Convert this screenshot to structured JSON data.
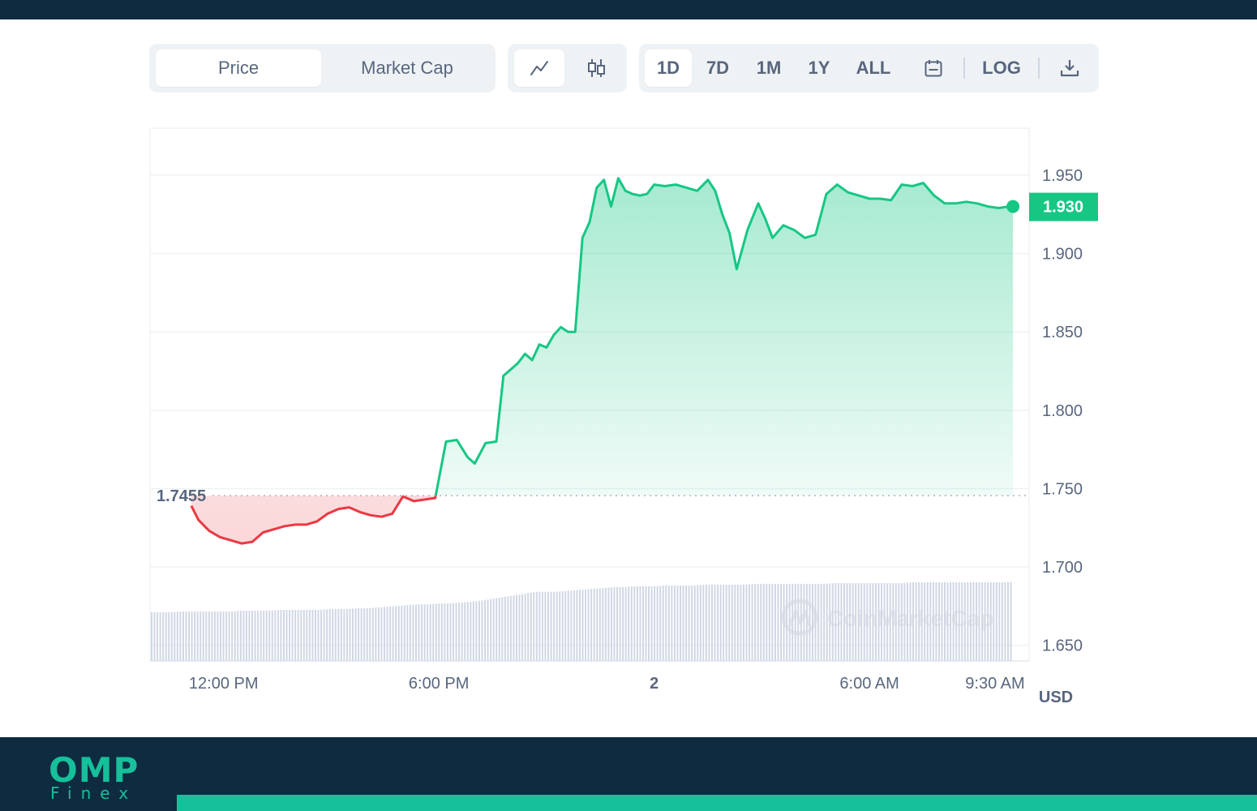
{
  "toolbar": {
    "price_label": "Price",
    "market_cap_label": "Market Cap",
    "ranges": [
      "1D",
      "7D",
      "1M",
      "1Y",
      "ALL"
    ],
    "log_label": "LOG"
  },
  "brand": {
    "logo_text": "OMP",
    "logo_subtext": "Finex"
  },
  "colors": {
    "up": "#16c784",
    "down": "#ea3943",
    "dark_navy": "#0f2b40",
    "brand_teal": "#16c09a"
  },
  "chart_data": {
    "type": "area",
    "baseline": 1.7455,
    "baseline_label": "1.7455",
    "current_price": 1.93,
    "current_price_label": "1.930",
    "currency_label": "USD",
    "watermark": "CoinMarketCap",
    "ylim": [
      1.64,
      1.98
    ],
    "y_ticks": [
      "1.950",
      "1.900",
      "1.850",
      "1.800",
      "1.750",
      "1.700",
      "1.650"
    ],
    "x_ticks": [
      "12:00 PM",
      "6:00 PM",
      "2",
      "6:00 AM",
      "9:30 AM"
    ],
    "x_tick_hours": [
      12,
      18,
      24,
      30,
      33.5
    ],
    "xlim_hours": [
      9.95,
      34.45
    ],
    "x_hours": [
      11.1,
      11.3,
      11.6,
      11.9,
      12.2,
      12.5,
      12.8,
      13.1,
      13.4,
      13.7,
      14.0,
      14.3,
      14.6,
      14.9,
      15.2,
      15.5,
      15.8,
      16.1,
      16.4,
      16.7,
      17.0,
      17.3,
      17.6,
      17.9,
      18.2,
      18.5,
      18.8,
      19.0,
      19.3,
      19.6,
      19.8,
      20.0,
      20.2,
      20.4,
      20.6,
      20.8,
      21.0,
      21.2,
      21.4,
      21.6,
      21.8,
      22.0,
      22.2,
      22.4,
      22.6,
      22.8,
      23.0,
      23.2,
      23.4,
      23.6,
      23.8,
      24.0,
      24.3,
      24.6,
      24.9,
      25.2,
      25.5,
      25.7,
      25.9,
      26.1,
      26.3,
      26.6,
      26.9,
      27.1,
      27.3,
      27.6,
      27.9,
      28.2,
      28.5,
      28.8,
      29.1,
      29.4,
      29.7,
      30.0,
      30.3,
      30.6,
      30.9,
      31.2,
      31.5,
      31.8,
      32.1,
      32.4,
      32.7,
      33.0,
      33.3,
      33.6,
      33.9,
      34.0
    ],
    "price": [
      1.739,
      1.73,
      1.723,
      1.719,
      1.717,
      1.715,
      1.716,
      1.722,
      1.724,
      1.726,
      1.727,
      1.727,
      1.729,
      1.734,
      1.737,
      1.738,
      1.735,
      1.733,
      1.732,
      1.734,
      1.745,
      1.742,
      1.743,
      1.744,
      1.78,
      1.781,
      1.77,
      1.766,
      1.779,
      1.78,
      1.822,
      1.826,
      1.83,
      1.836,
      1.832,
      1.842,
      1.84,
      1.848,
      1.853,
      1.85,
      1.85,
      1.91,
      1.92,
      1.942,
      1.947,
      1.93,
      1.948,
      1.94,
      1.938,
      1.937,
      1.938,
      1.944,
      1.943,
      1.944,
      1.942,
      1.94,
      1.947,
      1.94,
      1.925,
      1.913,
      1.89,
      1.915,
      1.932,
      1.922,
      1.91,
      1.918,
      1.915,
      1.91,
      1.912,
      1.938,
      1.944,
      1.939,
      1.937,
      1.935,
      1.935,
      1.934,
      1.944,
      1.943,
      1.945,
      1.937,
      1.932,
      1.932,
      1.933,
      1.932,
      1.93,
      1.929,
      1.93,
      1.93
    ],
    "volume_relative": [
      0.62,
      0.62,
      0.62,
      0.63,
      0.63,
      0.63,
      0.63,
      0.63,
      0.63,
      0.64,
      0.64,
      0.64,
      0.64,
      0.65,
      0.65,
      0.65,
      0.65,
      0.65,
      0.66,
      0.66,
      0.66,
      0.67,
      0.67,
      0.68,
      0.69,
      0.7,
      0.71,
      0.72,
      0.72,
      0.73,
      0.73,
      0.74,
      0.75,
      0.76,
      0.78,
      0.8,
      0.82,
      0.84,
      0.86,
      0.88,
      0.88,
      0.88,
      0.89,
      0.9,
      0.91,
      0.92,
      0.93,
      0.94,
      0.94,
      0.95,
      0.95,
      0.95,
      0.96,
      0.96,
      0.96,
      0.96,
      0.97,
      0.97,
      0.97,
      0.97,
      0.97,
      0.98,
      0.98,
      0.98,
      0.98,
      0.98,
      0.98,
      0.98,
      0.98,
      0.99,
      0.99,
      0.99,
      0.99,
      0.99,
      0.99,
      0.99,
      0.99,
      1.0,
      1.0,
      1.0,
      1.0,
      1.0,
      1.0,
      1.0,
      1.0,
      1.0,
      1.0,
      1.0
    ]
  }
}
